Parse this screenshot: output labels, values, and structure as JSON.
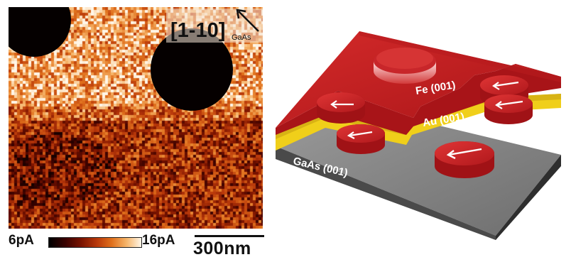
{
  "figure": {
    "left_panel": {
      "direction_label": "[1-10]",
      "direction_subscript": "GaAs",
      "colorbar_min": "6pA",
      "colorbar_max": "16pA",
      "scale_bar": "300nm",
      "colormap": [
        "#000000",
        "#3a0200",
        "#7a1300",
        "#b8380a",
        "#e0701c",
        "#f6b56a",
        "#fff6e8"
      ]
    },
    "right_panel": {
      "layers": {
        "fe": "Fe (001)",
        "au": "Au (001)",
        "gaas": "GaAs (001)"
      },
      "colors": {
        "fe": "#c81e22",
        "au": "#f2d21a",
        "gaas": "#8a8a8a",
        "arrow": "#ffffff"
      }
    }
  }
}
